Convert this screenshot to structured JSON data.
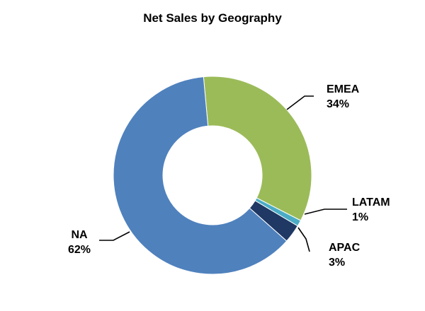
{
  "chart_data": {
    "type": "pie",
    "title": "Net Sales by Geography",
    "donut": true,
    "slices": [
      {
        "name": "EMEA",
        "value": 34,
        "label": "34%",
        "color": "#9BBB59"
      },
      {
        "name": "LATAM",
        "value": 1,
        "label": "1%",
        "color": "#4BACC6"
      },
      {
        "name": "APAC",
        "value": 3,
        "label": "3%",
        "color": "#1F3864"
      },
      {
        "name": "NA",
        "value": 62,
        "label": "62%",
        "color": "#4F81BD"
      }
    ],
    "legend": "none"
  }
}
